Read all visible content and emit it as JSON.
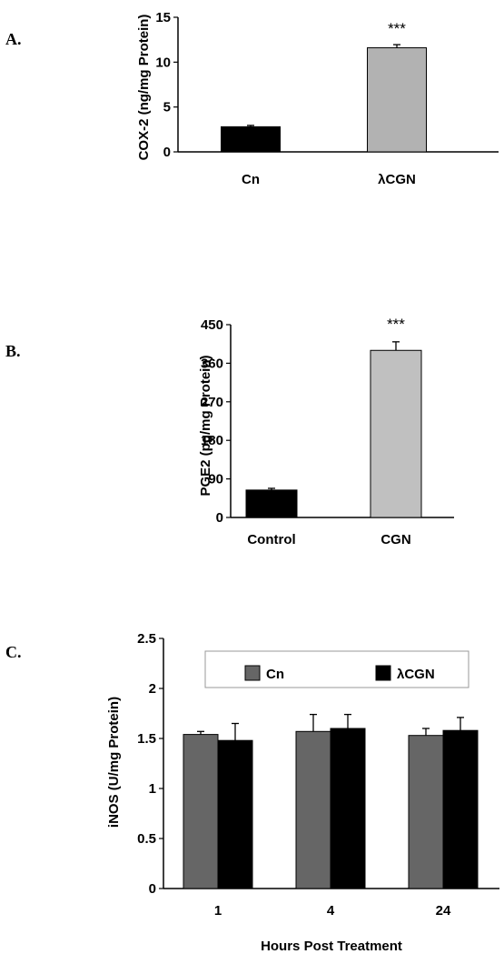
{
  "chart_data": [
    {
      "type": "bar",
      "panel_label": "A.",
      "ylabel": "COX-2 (ng/mg Protein)",
      "ylim": [
        0,
        15
      ],
      "yticks": [
        0,
        5,
        10,
        15
      ],
      "categories": [
        "Cn",
        "λCGN"
      ],
      "values": [
        2.8,
        11.6
      ],
      "errors": [
        0.15,
        0.35
      ],
      "colors": [
        "#000000",
        "#b2b2b2"
      ],
      "annotations": [
        "",
        "***"
      ]
    },
    {
      "type": "bar",
      "panel_label": "B.",
      "ylabel": "PGE2 (pg/mg Protein)",
      "ylim": [
        0,
        450
      ],
      "yticks": [
        0,
        90,
        180,
        270,
        360,
        450
      ],
      "categories": [
        "Control",
        "CGN"
      ],
      "values": [
        64,
        390
      ],
      "errors": [
        4,
        20
      ],
      "colors": [
        "#000000",
        "#c0c0c0"
      ],
      "annotations": [
        "",
        "***"
      ]
    },
    {
      "type": "bar",
      "panel_label": "C.",
      "ylabel": "iNOS (U/mg Protein)",
      "xlabel": "Hours Post Treatment",
      "ylim": [
        0,
        2.5
      ],
      "yticks": [
        "0",
        "0.5",
        "1",
        "1.5",
        "2",
        "2.5"
      ],
      "categories": [
        "1",
        "4",
        "24"
      ],
      "series": [
        {
          "name": "Cn",
          "values": [
            1.54,
            1.57,
            1.53
          ],
          "errors": [
            0.03,
            0.17,
            0.07
          ],
          "color": "#666666"
        },
        {
          "name": "λCGN",
          "values": [
            1.48,
            1.6,
            1.58
          ],
          "errors": [
            0.17,
            0.14,
            0.13
          ],
          "color": "#000000"
        }
      ],
      "legend": "top"
    }
  ]
}
